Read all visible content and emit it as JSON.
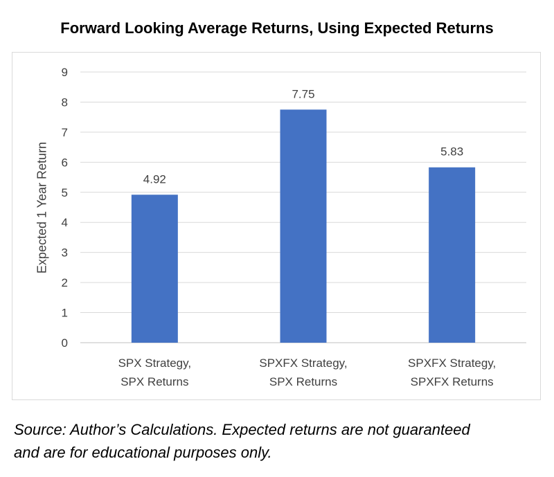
{
  "title": "Forward Looking Average Returns, Using Expected Returns",
  "source_line1": "Source: Author’s Calculations. Expected returns are not guaranteed",
  "source_line2": "and are for educational purposes only.",
  "colors": {
    "bar": "#4472c4",
    "grid": "#d9d9d9",
    "text": "#404040"
  },
  "chart_data": {
    "type": "bar",
    "title": "Forward Looking Average Returns, Using Expected Returns",
    "xlabel": "",
    "ylabel": "Expected 1 Year Return",
    "ylim": [
      0,
      9
    ],
    "yticks": [
      0,
      1,
      2,
      3,
      4,
      5,
      6,
      7,
      8,
      9
    ],
    "grid": true,
    "categories": [
      [
        "SPX Strategy,",
        "SPX Returns"
      ],
      [
        "SPXFX Strategy,",
        "SPX Returns"
      ],
      [
        "SPXFX Strategy,",
        "SPXFX Returns"
      ]
    ],
    "values": [
      4.92,
      7.75,
      5.83
    ],
    "data_labels": [
      "4.92",
      "7.75",
      "5.83"
    ]
  }
}
